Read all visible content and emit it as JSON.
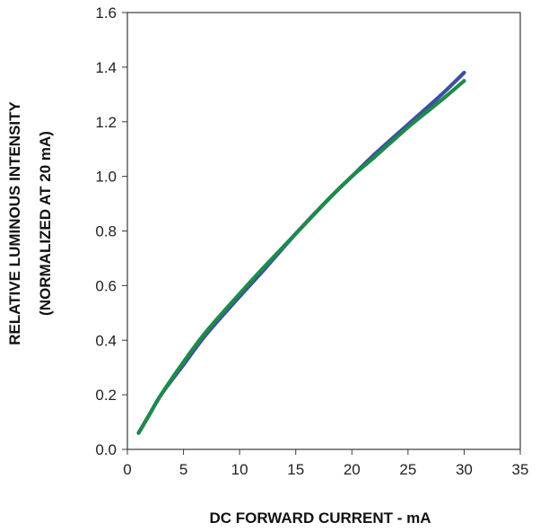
{
  "chart_data": {
    "type": "line",
    "title": "",
    "xlabel": "DC FORWARD CURRENT - mA",
    "ylabel_line1": "RELATIVE LUMINOUS INTENSITY",
    "ylabel_line2": "(NORMALIZED AT 20 mA)",
    "xlim": [
      0,
      35
    ],
    "ylim": [
      0,
      1.6
    ],
    "x_ticks": [
      0,
      5,
      10,
      15,
      20,
      25,
      30,
      35
    ],
    "x_tick_labels": [
      "0",
      "5",
      "10",
      "15",
      "20",
      "25",
      "30",
      "35"
    ],
    "y_ticks": [
      0,
      0.2,
      0.4,
      0.6,
      0.8,
      1.0,
      1.2,
      1.4,
      1.6
    ],
    "y_tick_labels": [
      "0.0",
      "0.2",
      "0.4",
      "0.6",
      "0.8",
      "1.0",
      "1.2",
      "1.4",
      "1.6"
    ],
    "grid": true,
    "legend": "none",
    "series": [
      {
        "color": "#3c4fa3",
        "x": [
          1,
          2,
          3,
          5,
          7,
          10,
          12,
          15,
          18,
          20,
          22,
          25,
          28,
          30
        ],
        "y": [
          0.06,
          0.13,
          0.2,
          0.31,
          0.42,
          0.56,
          0.65,
          0.79,
          0.92,
          1.0,
          1.08,
          1.19,
          1.3,
          1.38
        ]
      },
      {
        "color": "#1e8a4a",
        "x": [
          1,
          2,
          3,
          5,
          7,
          10,
          12,
          15,
          18,
          20,
          22,
          25,
          28,
          30
        ],
        "y": [
          0.06,
          0.13,
          0.2,
          0.32,
          0.43,
          0.57,
          0.66,
          0.79,
          0.92,
          1.0,
          1.07,
          1.18,
          1.28,
          1.35
        ]
      }
    ]
  }
}
